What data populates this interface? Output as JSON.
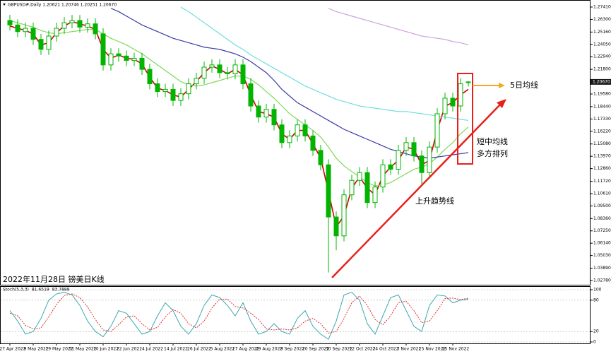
{
  "chart_data": [
    {
      "type": "candlestick",
      "header": "GBPUSD#,Daily  1.20621 1.20746 1.20251 1.20670",
      "caption": "2022年11月28日 镑美日K线",
      "annotations": [
        "5日均线",
        "短中均线",
        "多方排列",
        "上升趋势线"
      ],
      "categories": [
        "27 Apr 2022",
        null,
        null,
        "9 May 2022",
        null,
        null,
        "19 May 2022",
        null,
        null,
        "31 May 2022",
        null,
        null,
        "10 Jun 2022",
        null,
        null,
        "22 Jun 2022",
        null,
        null,
        "4 Jul 2022",
        null,
        null,
        "14 Jul 2022",
        null,
        null,
        "26 Jul 2022",
        null,
        null,
        "5 Aug 2022",
        null,
        null,
        "17 Aug 2022",
        null,
        null,
        "29 Aug 2022",
        null,
        null,
        "8 Sep 2022",
        null,
        null,
        "20 Sep 2022",
        null,
        null,
        "30 Sep 2022",
        null,
        null,
        "12 Oct 2022",
        null,
        null,
        "24 Oct 2022",
        null,
        null,
        "3 Nov 2022",
        null,
        null,
        "15 Nov 2022",
        null,
        null,
        "25 Nov 2022",
        null,
        null
      ],
      "open": [
        1.262,
        1.258,
        1.252,
        1.255,
        1.245,
        1.236,
        1.248,
        1.255,
        1.26,
        1.262,
        1.256,
        1.259,
        1.25,
        1.222,
        1.232,
        1.23,
        1.226,
        1.228,
        1.218,
        1.205,
        1.198,
        1.2,
        1.19,
        1.196,
        1.205,
        1.21,
        1.22,
        1.222,
        1.215,
        1.214,
        1.222,
        1.205,
        1.185,
        1.175,
        1.182,
        1.168,
        1.152,
        1.158,
        1.168,
        1.158,
        1.145,
        1.132,
        1.085,
        1.068,
        1.105,
        1.118,
        1.125,
        1.098,
        1.112,
        1.132,
        1.128,
        1.145,
        1.152,
        1.14,
        1.125,
        1.148,
        1.178,
        1.192,
        1.185,
        1.20621
      ],
      "high": [
        1.267,
        1.263,
        1.26,
        1.26,
        1.25,
        1.253,
        1.26,
        1.265,
        1.267,
        1.267,
        1.264,
        1.264,
        1.255,
        1.237,
        1.237,
        1.235,
        1.233,
        1.233,
        1.223,
        1.21,
        1.205,
        1.205,
        1.201,
        1.21,
        1.215,
        1.225,
        1.227,
        1.227,
        1.22,
        1.227,
        1.227,
        1.21,
        1.19,
        1.187,
        1.187,
        1.173,
        1.163,
        1.173,
        1.173,
        1.163,
        1.15,
        1.137,
        1.09,
        1.11,
        1.123,
        1.13,
        1.13,
        1.117,
        1.137,
        1.137,
        1.15,
        1.157,
        1.157,
        1.145,
        1.153,
        1.183,
        1.197,
        1.197,
        1.21,
        1.20746
      ],
      "low": [
        1.253,
        1.247,
        1.247,
        1.24,
        1.231,
        1.231,
        1.243,
        1.25,
        1.255,
        1.251,
        1.251,
        1.245,
        1.217,
        1.217,
        1.225,
        1.221,
        1.221,
        1.213,
        1.2,
        1.193,
        1.193,
        1.185,
        1.185,
        1.191,
        1.2,
        1.205,
        1.215,
        1.21,
        1.209,
        1.209,
        1.2,
        1.18,
        1.17,
        1.17,
        1.163,
        1.147,
        1.147,
        1.153,
        1.153,
        1.14,
        1.127,
        1.035,
        1.055,
        1.063,
        1.1,
        1.113,
        1.093,
        1.093,
        1.107,
        1.123,
        1.123,
        1.14,
        1.135,
        1.115,
        1.12,
        1.143,
        1.173,
        1.18,
        1.18,
        1.20251
      ],
      "close": [
        1.258,
        1.252,
        1.255,
        1.245,
        1.236,
        1.248,
        1.255,
        1.26,
        1.262,
        1.256,
        1.259,
        1.25,
        1.222,
        1.232,
        1.23,
        1.226,
        1.228,
        1.218,
        1.205,
        1.198,
        1.2,
        1.19,
        1.196,
        1.205,
        1.21,
        1.22,
        1.222,
        1.215,
        1.214,
        1.222,
        1.205,
        1.185,
        1.175,
        1.182,
        1.168,
        1.152,
        1.158,
        1.168,
        1.158,
        1.145,
        1.132,
        1.085,
        1.068,
        1.105,
        1.118,
        1.125,
        1.098,
        1.112,
        1.132,
        1.128,
        1.145,
        1.152,
        1.14,
        1.125,
        1.148,
        1.178,
        1.192,
        1.185,
        1.205,
        1.2067
      ],
      "candle_color": "#00b400",
      "series": [
        {
          "color": "#d40000",
          "values": [
            1.257,
            1.255,
            1.253,
            1.25,
            1.24,
            1.242,
            1.251,
            1.257,
            1.261,
            1.259,
            1.257,
            1.254,
            1.236,
            1.228,
            1.231,
            1.228,
            1.227,
            1.223,
            1.211,
            1.201,
            1.199,
            1.195,
            1.193,
            1.2,
            1.207,
            1.215,
            1.221,
            1.218,
            1.214,
            1.218,
            1.213,
            1.195,
            1.18,
            1.178,
            1.175,
            1.16,
            1.155,
            1.163,
            1.163,
            1.151,
            1.138,
            1.108,
            1.076,
            1.086,
            1.111,
            1.121,
            1.111,
            1.105,
            1.122,
            1.13,
            1.136,
            1.148,
            1.146,
            1.132,
            1.136,
            1.163,
            1.185,
            1.188,
            1.195,
            1.2
          ]
        },
        {
          "color": "#7ed957",
          "values": [
            1.262,
            1.26,
            1.258,
            1.256,
            1.253,
            1.251,
            1.25,
            1.251,
            1.252,
            1.253,
            1.254,
            1.254,
            1.25,
            1.246,
            1.243,
            1.24,
            1.236,
            1.232,
            1.227,
            1.222,
            1.217,
            1.212,
            1.207,
            1.204,
            1.203,
            1.204,
            1.206,
            1.208,
            1.21,
            1.212,
            1.212,
            1.209,
            1.204,
            1.198,
            1.192,
            1.185,
            1.178,
            1.173,
            1.168,
            1.163,
            1.157,
            1.148,
            1.138,
            1.131,
            1.126,
            1.121,
            1.116,
            1.113,
            1.114,
            1.116,
            1.12,
            1.124,
            1.128,
            1.13,
            1.133,
            1.139,
            1.146,
            1.152,
            1.16,
            1.166
          ]
        },
        {
          "color": "#3a3aa8",
          "values": [
            null,
            null,
            null,
            null,
            null,
            null,
            null,
            null,
            null,
            null,
            null,
            null,
            null,
            1.273,
            1.27,
            1.266,
            1.262,
            1.258,
            1.255,
            1.252,
            1.249,
            1.246,
            1.244,
            1.242,
            1.24,
            1.238,
            1.237,
            1.236,
            1.234,
            1.232,
            1.229,
            1.225,
            1.22,
            1.215,
            1.208,
            1.2,
            1.194,
            1.188,
            1.184,
            1.18,
            1.176,
            1.172,
            1.168,
            1.164,
            1.161,
            1.158,
            1.155,
            1.152,
            1.149,
            1.146,
            1.144,
            1.142,
            1.14,
            1.139,
            1.138,
            1.139,
            1.14,
            1.141,
            1.142,
            1.143
          ]
        },
        {
          "color": "#6fdede",
          "values": [
            null,
            null,
            null,
            null,
            null,
            null,
            null,
            null,
            null,
            null,
            null,
            null,
            null,
            null,
            null,
            null,
            null,
            null,
            null,
            null,
            null,
            null,
            1.274,
            1.27,
            1.265,
            1.26,
            1.255,
            1.25,
            1.245,
            1.24,
            1.236,
            1.231,
            1.227,
            1.223,
            1.219,
            1.215,
            1.211,
            1.207,
            1.203,
            1.2,
            1.197,
            1.194,
            1.191,
            1.189,
            1.187,
            1.185,
            1.184,
            1.183,
            1.182,
            1.181,
            1.18,
            1.18,
            1.179,
            1.178,
            1.177,
            1.176,
            1.175,
            1.174,
            1.173,
            1.172
          ]
        },
        {
          "color": "#cfa0dc",
          "values": [
            null,
            null,
            null,
            null,
            null,
            null,
            null,
            null,
            null,
            null,
            null,
            null,
            null,
            null,
            null,
            null,
            null,
            null,
            null,
            null,
            null,
            null,
            null,
            null,
            null,
            null,
            null,
            null,
            null,
            null,
            null,
            null,
            null,
            null,
            null,
            null,
            null,
            null,
            null,
            null,
            null,
            1.273,
            1.27,
            1.268,
            1.266,
            1.264,
            1.262,
            1.26,
            1.258,
            1.256,
            1.254,
            1.252,
            1.25,
            1.248,
            1.247,
            1.246,
            1.245,
            1.243,
            1.242,
            1.24
          ]
        }
      ],
      "ylim": [
        1.0246,
        1.2792
      ],
      "yticks": [
        {
          "value": 1.2741,
          "label": "1.27410"
        },
        {
          "value": 1.263,
          "label": "1.26300"
        },
        {
          "value": 1.2516,
          "label": "1.25160"
        },
        {
          "value": 1.2405,
          "label": "1.24050"
        },
        {
          "value": 1.2294,
          "label": "1.22940"
        },
        {
          "value": 1.218,
          "label": "1.21800"
        },
        {
          "value": 1.1958,
          "label": "1.19580"
        },
        {
          "value": 1.1844,
          "label": "1.18440"
        },
        {
          "value": 1.1733,
          "label": "1.17330"
        },
        {
          "value": 1.1622,
          "label": "1.16220"
        },
        {
          "value": 1.1508,
          "label": "1.15080"
        },
        {
          "value": 1.1397,
          "label": "1.13970"
        },
        {
          "value": 1.1286,
          "label": "1.12860"
        },
        {
          "value": 1.1172,
          "label": "1.11720"
        },
        {
          "value": 1.1061,
          "label": "1.10610"
        },
        {
          "value": 1.095,
          "label": "1.09500"
        },
        {
          "value": 1.0836,
          "label": "1.08360"
        },
        {
          "value": 1.0725,
          "label": "1.07250"
        },
        {
          "value": 1.0614,
          "label": "1.06140"
        },
        {
          "value": 1.0503,
          "label": "1.05030"
        },
        {
          "value": 1.0389,
          "label": "1.03890"
        },
        {
          "value": 1.0278,
          "label": "1.02780"
        }
      ],
      "current_price": {
        "value": 1.2067,
        "label": "1.20670"
      }
    },
    {
      "type": "line",
      "title": "Stoch(5,3,3)",
      "series": [
        {
          "color": "#3aa8b0",
          "dashed": false,
          "values": [
            60,
            40,
            15,
            20,
            45,
            80,
            92,
            95,
            90,
            70,
            40,
            20,
            10,
            30,
            60,
            55,
            35,
            15,
            20,
            50,
            75,
            60,
            30,
            15,
            35,
            70,
            90,
            85,
            70,
            50,
            75,
            40,
            15,
            20,
            35,
            20,
            15,
            45,
            60,
            30,
            15,
            5,
            40,
            90,
            95,
            80,
            35,
            15,
            50,
            85,
            90,
            60,
            30,
            20,
            70,
            90,
            88,
            75,
            80,
            81.6519
          ]
        },
        {
          "color": "#e03030",
          "dashed": true,
          "values": [
            55,
            50,
            32,
            25,
            27,
            48,
            72,
            89,
            92,
            85,
            67,
            43,
            23,
            20,
            33,
            48,
            50,
            35,
            23,
            28,
            48,
            62,
            55,
            35,
            27,
            40,
            65,
            82,
            82,
            68,
            65,
            55,
            43,
            25,
            23,
            25,
            23,
            27,
            40,
            45,
            35,
            17,
            20,
            45,
            75,
            88,
            70,
            43,
            33,
            50,
            75,
            78,
            60,
            37,
            40,
            60,
            83,
            84,
            81,
            83.7888
          ]
        }
      ],
      "ylim": [
        0,
        100
      ],
      "yticks": [
        0,
        20,
        80,
        100
      ],
      "grid": true
    }
  ]
}
